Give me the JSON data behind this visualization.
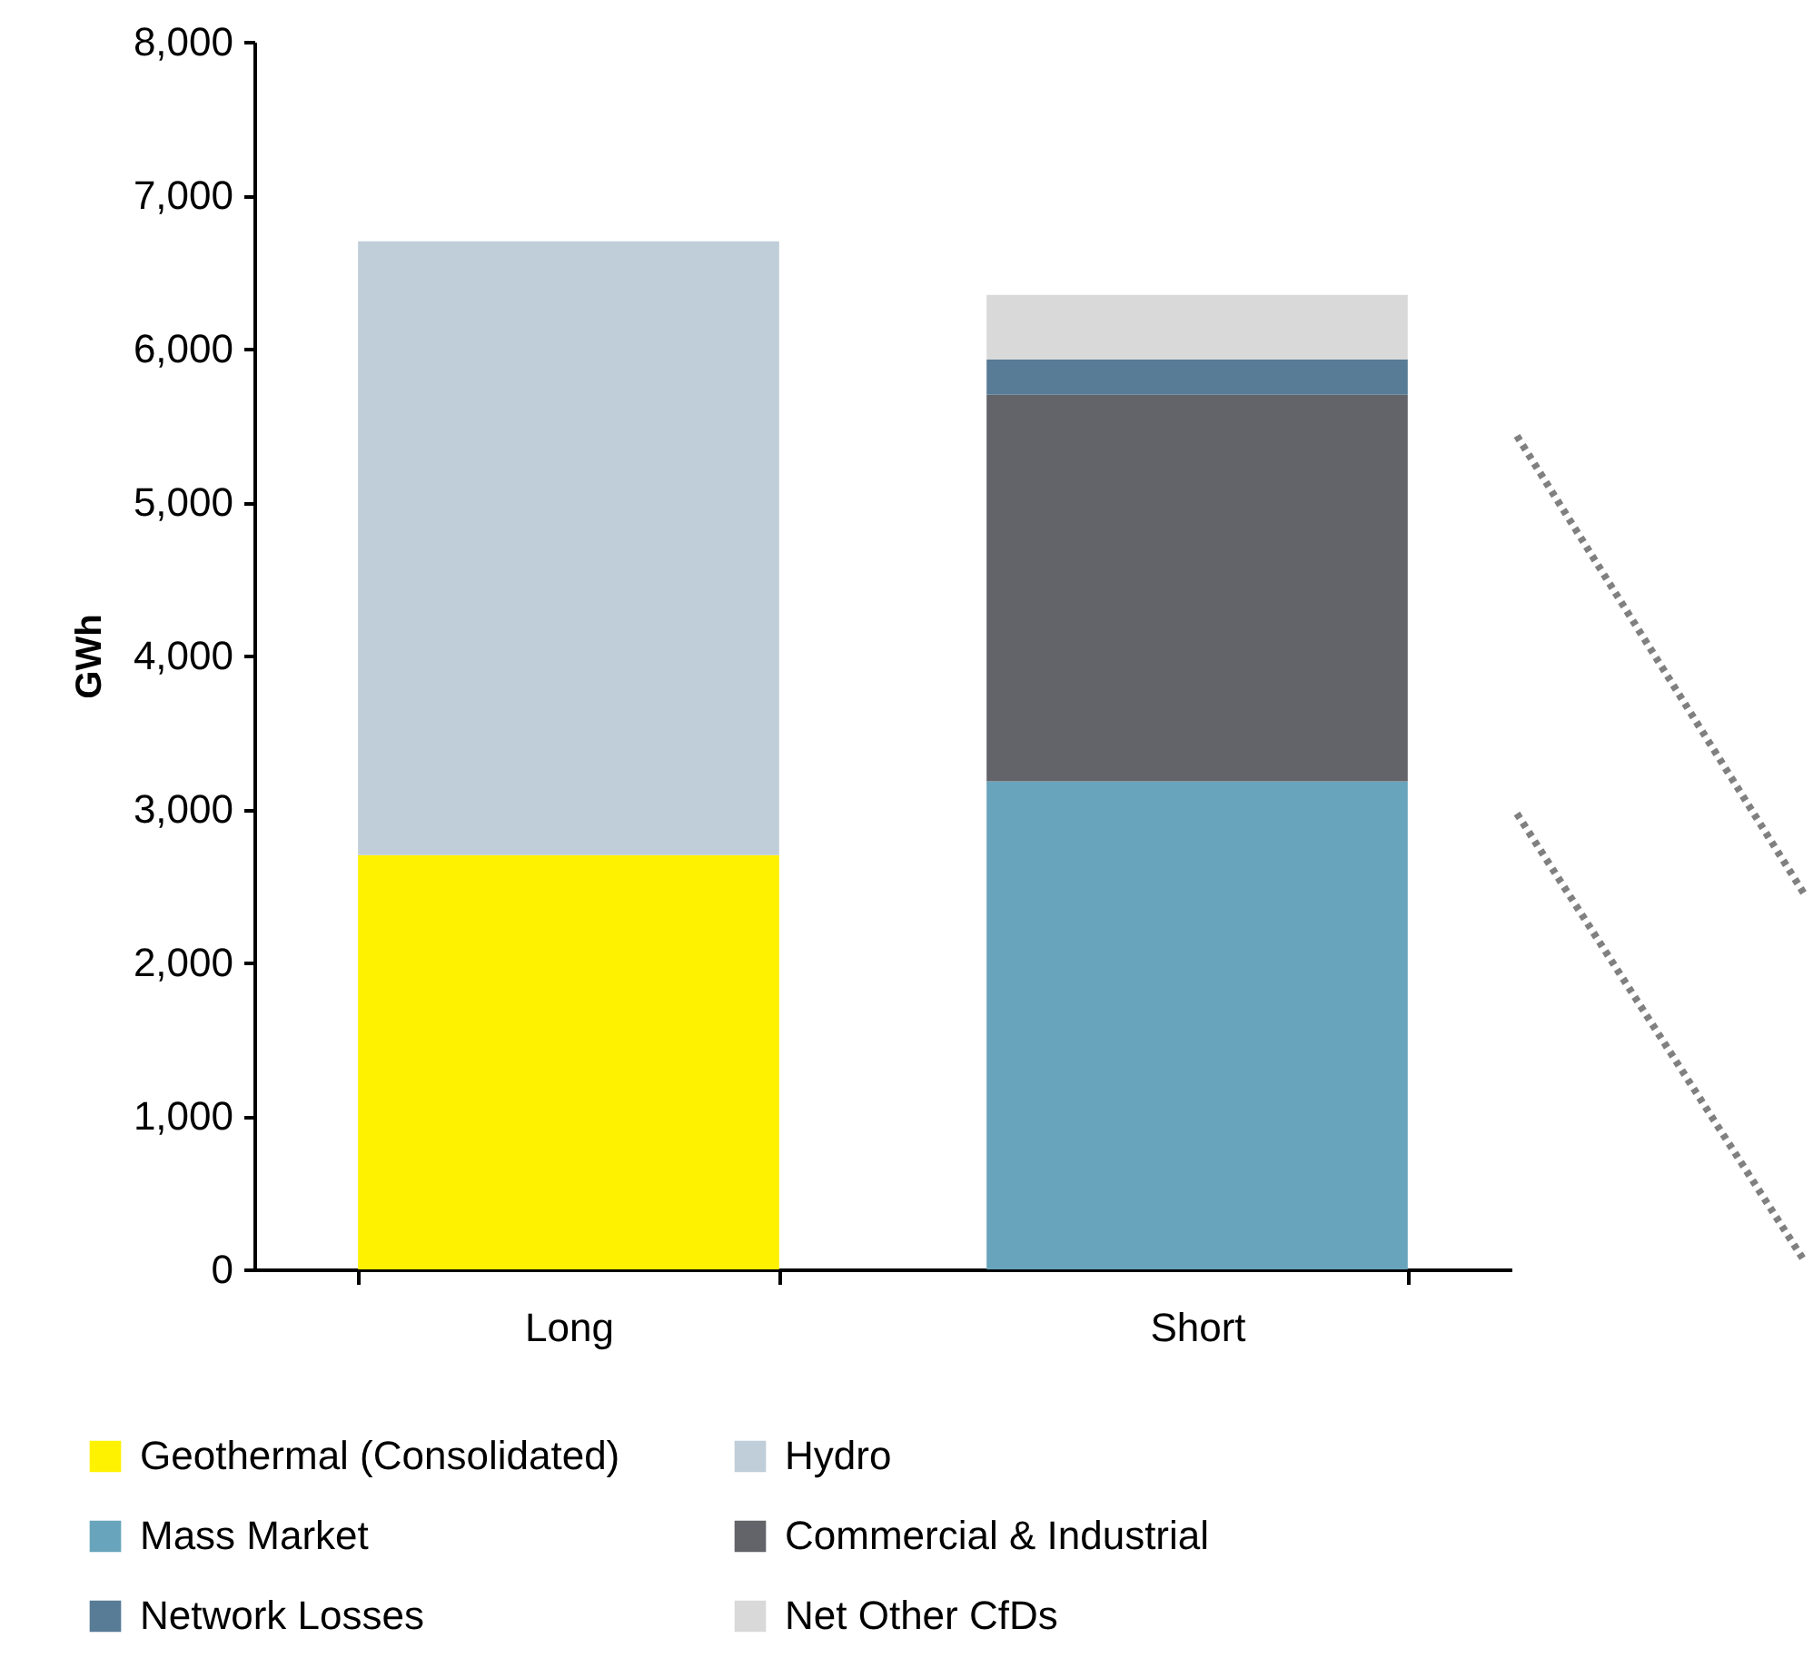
{
  "chart_data": {
    "type": "bar",
    "stacked": true,
    "ylabel": "GWh",
    "categories": [
      "Long",
      "Short"
    ],
    "ylim": [
      0,
      8000
    ],
    "yticks": [
      {
        "value": 0,
        "label": "0"
      },
      {
        "value": 1000,
        "label": "1,000"
      },
      {
        "value": 2000,
        "label": "2,000"
      },
      {
        "value": 3000,
        "label": "3,000"
      },
      {
        "value": 4000,
        "label": "4,000"
      },
      {
        "value": 5000,
        "label": "5,000"
      },
      {
        "value": 6000,
        "label": "6,000"
      },
      {
        "value": 7000,
        "label": "7,000"
      },
      {
        "value": 8000,
        "label": "8,000"
      }
    ],
    "grid": false,
    "legend": "bottom",
    "series": [
      {
        "name": "Geothermal (Consolidated)",
        "color": "#fff200",
        "values": [
          2700,
          null
        ]
      },
      {
        "name": "Hydro",
        "color": "#c0ced9",
        "values": [
          4000,
          null
        ]
      },
      {
        "name": "Mass Market",
        "color": "#68a4bb",
        "values": [
          null,
          3180
        ]
      },
      {
        "name": "Commercial & Industrial",
        "color": "#636469",
        "values": [
          null,
          2520
        ]
      },
      {
        "name": "Network Losses",
        "color": "#587b96",
        "values": [
          null,
          230
        ]
      },
      {
        "name": "Net Other CfDs",
        "color": "#d9d9d9",
        "values": [
          null,
          420
        ]
      }
    ]
  }
}
